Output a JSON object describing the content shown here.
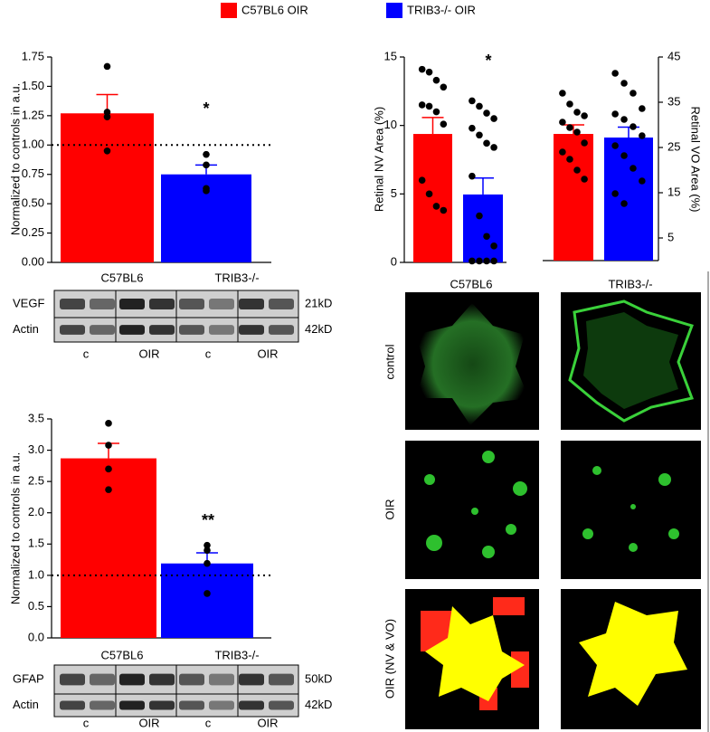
{
  "chart_data": [
    {
      "type": "bar",
      "ylabel": "Normalized to controls in a.u.",
      "ylim": [
        0,
        1.75
      ],
      "yticks": [
        {
          "value": 0,
          "label": "0.00"
        },
        {
          "value": 0.25,
          "label": "0.25"
        },
        {
          "value": 0.5,
          "label": "0.50"
        },
        {
          "value": 0.75,
          "label": "0.75"
        },
        {
          "value": 1,
          "label": "1.00"
        },
        {
          "value": 1.25,
          "label": "1.25"
        },
        {
          "value": 1.5,
          "label": "1.50"
        },
        {
          "value": 1.75,
          "label": "1.75"
        }
      ],
      "reference_line": 1,
      "annotation": "*",
      "series": [
        {
          "name": "C57BL6 OIR",
          "color": "#ff0000",
          "values": [
            1.27
          ],
          "errors": [
            0.16
          ],
          "points": [
            1.67,
            1.28,
            1.24,
            0.95
          ]
        },
        {
          "name": "TRIB3-/- OIR",
          "color": "#0000ff",
          "values": [
            0.75
          ],
          "errors": [
            0.08
          ],
          "points": [
            0.92,
            0.83,
            0.61,
            0.63
          ]
        }
      ]
    },
    {
      "type": "bar",
      "ylabel": "Retinal NV Area (%)",
      "ylim": [
        0,
        15
      ],
      "yticks": [
        0,
        5,
        10,
        15
      ],
      "annotation": "*",
      "series": [
        {
          "color": "#ff0000",
          "values": [
            9.38
          ],
          "errors": [
            1.2
          ],
          "points": [
            14.1,
            13.9,
            13.3,
            12.8,
            11.5,
            11.4,
            11.0,
            10.1,
            6.0,
            5.0,
            4.1,
            3.8
          ]
        },
        {
          "color": "#0000ff",
          "values": [
            4.96
          ],
          "errors": [
            1.2
          ],
          "points": [
            11.8,
            11.4,
            10.9,
            10.5,
            9.8,
            9.3,
            8.7,
            8.4,
            6.3,
            3.4,
            1.9,
            1.2,
            0.1,
            0.1,
            0.1,
            0.1
          ]
        }
      ]
    },
    {
      "type": "bar",
      "ylabel": "Retinal VO Area (%)",
      "axis_side": "right",
      "ylim": [
        0,
        45
      ],
      "yticks": [
        5,
        15,
        25,
        35,
        45
      ],
      "series": [
        {
          "color": "#ff0000",
          "values": [
            28
          ],
          "errors": [
            2
          ],
          "points": [
            37,
            34.6,
            32.8,
            32,
            30.6,
            29.4,
            28.4,
            26,
            24,
            22.4,
            20,
            18
          ]
        },
        {
          "color": "#0000ff",
          "values": [
            27.2
          ],
          "errors": [
            2.3
          ],
          "points": [
            41.4,
            39.2,
            37,
            33.6,
            32.4,
            31.2,
            29.6,
            27.6,
            25.4,
            23.2,
            20.4,
            17.6,
            14.8,
            12.6
          ]
        }
      ]
    },
    {
      "type": "bar",
      "ylabel": "Normalized to controls in a.u.",
      "ylim": [
        0,
        3.5
      ],
      "yticks": [
        {
          "value": 0,
          "label": "0.0"
        },
        {
          "value": 0.5,
          "label": "0.5"
        },
        {
          "value": 1,
          "label": "1.0"
        },
        {
          "value": 1.5,
          "label": "1.5"
        },
        {
          "value": 2,
          "label": "2.0"
        },
        {
          "value": 2.5,
          "label": "2.5"
        },
        {
          "value": 3,
          "label": "3.0"
        },
        {
          "value": 3.5,
          "label": "3.5"
        }
      ],
      "reference_line": 1,
      "annotation": "**",
      "series": [
        {
          "color": "#ff0000",
          "values": [
            2.87
          ],
          "errors": [
            0.24
          ],
          "points": [
            3.43,
            3.08,
            2.7,
            2.37
          ]
        },
        {
          "color": "#0000ff",
          "values": [
            1.19
          ],
          "errors": [
            0.17
          ],
          "points": [
            1.48,
            1.4,
            1.19,
            0.71
          ]
        }
      ]
    }
  ],
  "blots": [
    {
      "groups": [
        "C57BL6",
        "TRIB3-/-"
      ],
      "rows": [
        "VEGF",
        "Actin"
      ],
      "sizes": [
        "21kD",
        "42kD"
      ],
      "lanes": [
        "c",
        "OIR",
        "c",
        "OIR"
      ]
    },
    {
      "groups": [
        "C57BL6",
        "TRIB3-/-"
      ],
      "rows": [
        "GFAP",
        "Actin"
      ],
      "sizes": [
        "50kD",
        "42kD"
      ],
      "lanes": [
        "c",
        "OIR",
        "c",
        "OIR"
      ]
    }
  ],
  "images": {
    "columns": [
      "C57BL6",
      "TRIB3-/-"
    ],
    "rows": [
      "control",
      "OIR",
      "OIR (NV & VO)"
    ]
  }
}
